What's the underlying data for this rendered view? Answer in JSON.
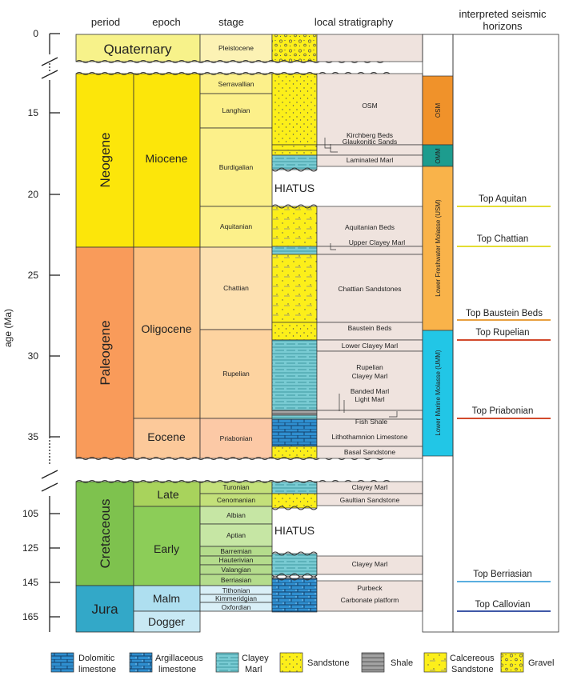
{
  "headers": {
    "period": "period",
    "epoch": "epoch",
    "stage": "stage",
    "local": "local stratigraphy",
    "seismic_l1": "interpreted seismic",
    "seismic_l2": "horizons"
  },
  "axis": {
    "label": "age (Ma)",
    "ticks": [
      "0",
      "15",
      "20",
      "25",
      "30",
      "35",
      "105",
      "125",
      "145",
      "165"
    ]
  },
  "periods": [
    "Quaternary",
    "Neogene",
    "Paleogene",
    "Cretaceous",
    "Jura"
  ],
  "epochs": [
    "Miocene",
    "Oligocene",
    "Eocene",
    "Late",
    "Early",
    "Malm",
    "Dogger"
  ],
  "stages": [
    "Pleistocene",
    "Serravallian",
    "Langhian",
    "Burdigalian",
    "Aquitanian",
    "Chattian",
    "Rupelian",
    "Priabonian",
    "Turonian",
    "Cenomanian",
    "Albian",
    "Aptian",
    "Barremian",
    "Hauterivian",
    "Valangian",
    "Berriasian",
    "Tithonian",
    "Kimmeridgian",
    "Oxfordian"
  ],
  "local": [
    "OSM",
    "Kirchberg Beds",
    "Glaukonitic Sands",
    "Laminated Marl",
    "Aquitanian Beds",
    "Upper Clayey Marl",
    "Chattian Sandstones",
    "Baustein Beds",
    "Lower Clayey Marl",
    "Rupelian",
    "Clayey Marl",
    "Banded Marl",
    "Light Marl",
    "Fish Shale",
    "Lithothamnion Limestone",
    "Basal Sandstone",
    "Clayey Marl",
    "Gaultian Sandstone",
    "Clayey Marl",
    "Purbeck",
    "Carbonate platform"
  ],
  "hiatus": [
    "HIATUS",
    "HIATUS"
  ],
  "groups": [
    "OSM",
    "OMM",
    "Lower Freshwater Molasse (USM)",
    "Lower Marine Molasse (UMM)"
  ],
  "horizons": [
    {
      "label": "Top Aquitan",
      "color": "#e3dd32"
    },
    {
      "label": "Top Chattian",
      "color": "#e3dd32"
    },
    {
      "label": "Top Baustein Beds",
      "color": "#e8a040"
    },
    {
      "label": "Top Rupelian",
      "color": "#d24a2c"
    },
    {
      "label": "Top Priabonian",
      "color": "#d24a2c"
    },
    {
      "label": "Top Berriasian",
      "color": "#5aaee0"
    },
    {
      "label": "Top Callovian",
      "color": "#3f58a8"
    }
  ],
  "legend": [
    {
      "l1": "Dolomitic",
      "l2": "limestone"
    },
    {
      "l1": "Argillaceous",
      "l2": "limestone"
    },
    {
      "l1": "Clayey",
      "l2": "Marl"
    },
    {
      "l1": "Sandstone",
      "l2": ""
    },
    {
      "l1": "Shale",
      "l2": ""
    },
    {
      "l1": "Calcereous",
      "l2": "Sandstone"
    },
    {
      "l1": "Gravel",
      "l2": ""
    }
  ],
  "colors": {
    "quaternary": "#f7f28a",
    "neogene": "#fce60a",
    "paleogene": "#f99b5a",
    "cretaceous": "#7ec24e",
    "jura": "#33a8c8",
    "oligocene": "#fcbf80",
    "eocene": "#fcc99a",
    "late_cret": "#a8d35c",
    "early_cret": "#8ccd58",
    "malm": "#aedff0",
    "dogger": "#c8e9f4",
    "local_fill": "#efe3de",
    "osm": "#f0922a",
    "omm": "#1d9c8e",
    "usm": "#f9b34a",
    "umm": "#22c6e6"
  }
}
